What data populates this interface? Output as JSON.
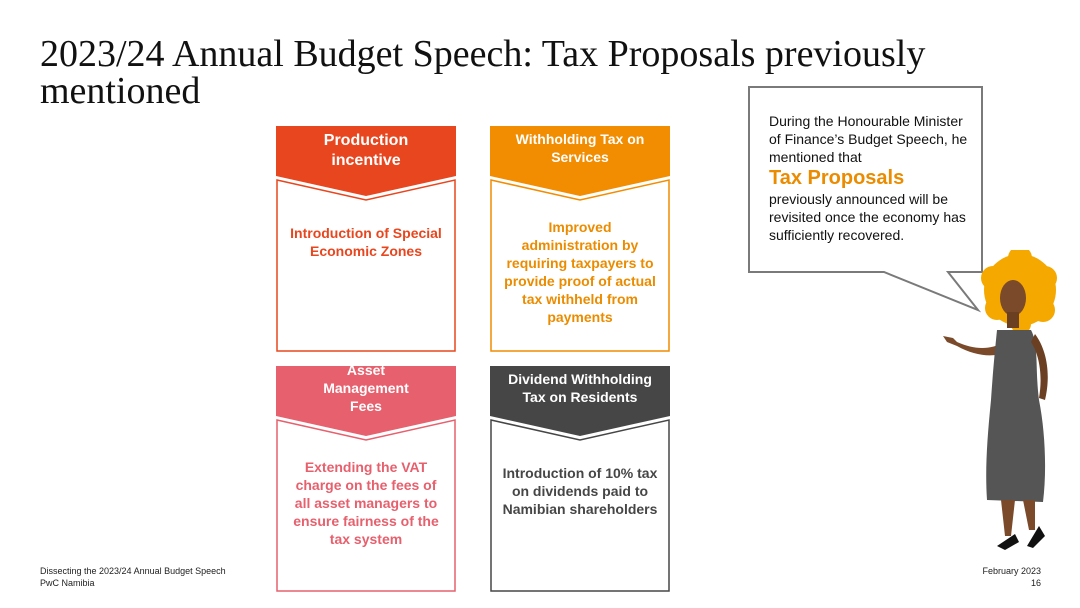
{
  "title": "2023/24 Annual Budget Speech: Tax Proposals previously mentioned",
  "cards": [
    {
      "heading": "Production incentive",
      "body": "Introduction of Special Economic Zones",
      "color": "#e8461e",
      "text_color": "#e8461e"
    },
    {
      "heading": "Withholding Tax on Services",
      "body": "Improved administration by requiring taxpayers to provide proof of actual tax withheld from payments",
      "color": "#f28c00",
      "text_color": "#eb8c00"
    },
    {
      "heading": "Asset Management Fees",
      "body": "Extending the VAT charge on the fees of all asset managers to ensure fairness of the tax system",
      "color": "#e6606d",
      "text_color": "#e6606d"
    },
    {
      "heading": "Dividend Withholding Tax on Residents",
      "body": "Introduction of 10% tax on dividends paid to Namibian shareholders",
      "color": "#464646",
      "text_color": "#464646"
    }
  ],
  "bubble": {
    "intro": "During the Honourable Minister of Finance’s Budget Speech, he mentioned that",
    "highlight": "Tax Proposals",
    "outro": "previously announced will be revisited once the economy has sufficiently recovered."
  },
  "footer": {
    "left_line1": "Dissecting the 2023/24 Annual Budget Speech",
    "left_line2": "PwC Namibia",
    "date": "February 2023",
    "page": "16"
  },
  "illustration": "presenter-woman-illustration"
}
